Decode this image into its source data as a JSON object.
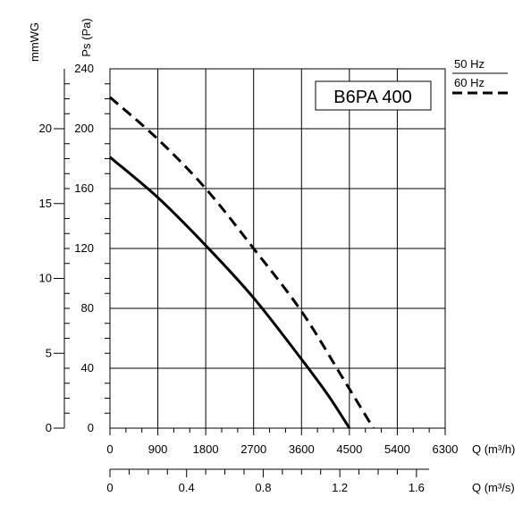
{
  "chart_data": {
    "type": "line",
    "title": "B6PA 400",
    "axes": {
      "x_primary": {
        "label": "Q (m³/h)",
        "range": [
          0,
          6300
        ],
        "ticks": [
          "0",
          "900",
          "1800",
          "2700",
          "3600",
          "4500",
          "5400",
          "6300"
        ]
      },
      "x_secondary": {
        "label": "Q (m³/s)",
        "range": [
          0,
          1.75
        ],
        "ticks": [
          "0",
          "0.4",
          "0.8",
          "1.2",
          "1.6"
        ]
      },
      "y_primary": {
        "label": "Ps (Pa)",
        "range": [
          0,
          240
        ],
        "ticks": [
          "0",
          "40",
          "80",
          "120",
          "160",
          "200",
          "240"
        ]
      },
      "y_secondary": {
        "label": "mmWG",
        "range": [
          0,
          24
        ],
        "ticks": [
          "0",
          "5",
          "10",
          "15",
          "20"
        ]
      }
    },
    "grid": true,
    "legend_position": "top-right",
    "series": [
      {
        "name": "50 Hz",
        "style": "solid",
        "x": [
          0,
          900,
          1800,
          2700,
          3600,
          4100,
          4500
        ],
        "y": [
          181,
          154,
          122,
          87,
          46,
          22,
          0
        ]
      },
      {
        "name": "60 Hz",
        "style": "dashed",
        "x": [
          0,
          900,
          1800,
          2700,
          3600,
          4400,
          4950
        ],
        "y": [
          221,
          193,
          160,
          120,
          78,
          32,
          0
        ]
      }
    ]
  }
}
